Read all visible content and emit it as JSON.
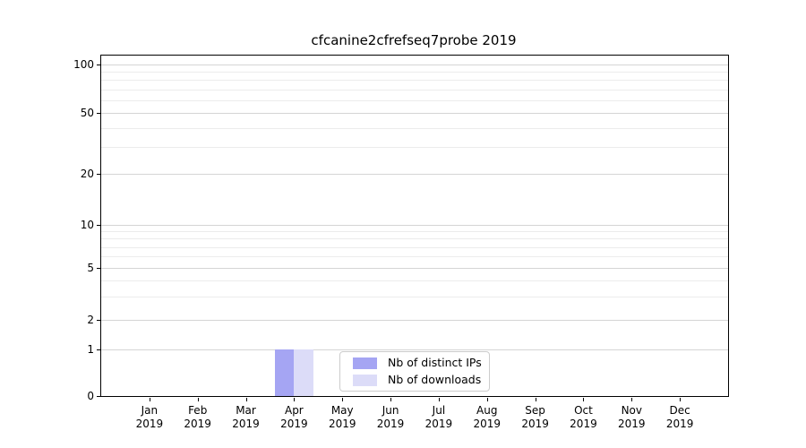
{
  "title": "cfcanine2cfrefseq7probe 2019",
  "chart_data": {
    "type": "bar",
    "title": "cfcanine2cfrefseq7probe 2019",
    "categories": [
      "Jan 2019",
      "Feb 2019",
      "Mar 2019",
      "Apr 2019",
      "May 2019",
      "Jun 2019",
      "Jul 2019",
      "Aug 2019",
      "Sep 2019",
      "Oct 2019",
      "Nov 2019",
      "Dec 2019"
    ],
    "x_tick_months": [
      "Jan",
      "Feb",
      "Mar",
      "Apr",
      "May",
      "Jun",
      "Jul",
      "Aug",
      "Sep",
      "Oct",
      "Nov",
      "Dec"
    ],
    "x_tick_year": "2019",
    "series": [
      {
        "name": "Nb of distinct IPs",
        "color": "#a5a5f3",
        "values": [
          0,
          0,
          0,
          1,
          0,
          0,
          0,
          0,
          0,
          0,
          0,
          0
        ]
      },
      {
        "name": "Nb of downloads",
        "color": "#dcdcf8",
        "values": [
          0,
          0,
          0,
          1,
          0,
          0,
          0,
          0,
          0,
          0,
          0,
          0
        ]
      }
    ],
    "xlabel": "",
    "ylabel": "",
    "yscale": "symlog",
    "ylim": [
      0,
      115
    ],
    "y_major_ticks": [
      0,
      1,
      2,
      5,
      10,
      20,
      50,
      100
    ],
    "y_minor_gridlines": [
      3,
      4,
      6,
      7,
      8,
      9,
      30,
      40,
      60,
      70,
      80,
      90
    ],
    "grid": "horizontal major and minor gridlines",
    "legend_position": "lower center"
  },
  "legend": {
    "entries": [
      {
        "label": "Nb of distinct IPs",
        "color": "#a5a5f3"
      },
      {
        "label": "Nb of downloads",
        "color": "#dcdcf8"
      }
    ]
  },
  "colors": {
    "background": "#ffffff",
    "spine": "#000000",
    "grid_major": "#d5d5d5",
    "grid_minor": "#ececec",
    "bar_distinct_ips": "#a5a5f3",
    "bar_downloads": "#dcdcf8"
  }
}
